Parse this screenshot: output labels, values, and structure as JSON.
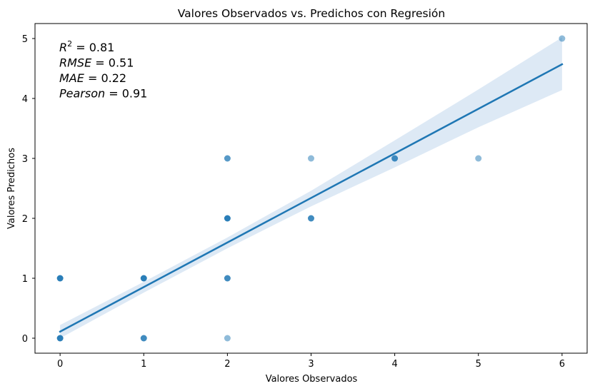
{
  "chart_data": {
    "type": "scatter",
    "title": "Valores Observados vs. Predichos con Regresión",
    "xlabel": "Valores Observados",
    "ylabel": "Valores Predichos",
    "xlim": [
      -0.3,
      6.3
    ],
    "ylim": [
      -0.25,
      5.25
    ],
    "xticks": [
      0,
      1,
      2,
      3,
      4,
      5,
      6
    ],
    "yticks": [
      0,
      1,
      2,
      3,
      4,
      5
    ],
    "grid": false,
    "point_color": "#1f77b4",
    "line_color": "#1f77b4",
    "band_color": "#c6dbef",
    "points": [
      {
        "x": 0,
        "y": 0,
        "alpha": 0.95
      },
      {
        "x": 0,
        "y": 1,
        "alpha": 0.95
      },
      {
        "x": 1,
        "y": 0,
        "alpha": 0.85
      },
      {
        "x": 1,
        "y": 1,
        "alpha": 0.95
      },
      {
        "x": 2,
        "y": 0,
        "alpha": 0.5
      },
      {
        "x": 2,
        "y": 1,
        "alpha": 0.85
      },
      {
        "x": 2,
        "y": 2,
        "alpha": 0.95
      },
      {
        "x": 2,
        "y": 3,
        "alpha": 0.75
      },
      {
        "x": 3,
        "y": 2,
        "alpha": 0.85
      },
      {
        "x": 3,
        "y": 3,
        "alpha": 0.5
      },
      {
        "x": 4,
        "y": 3,
        "alpha": 0.85
      },
      {
        "x": 5,
        "y": 3,
        "alpha": 0.5
      },
      {
        "x": 6,
        "y": 5,
        "alpha": 0.5
      }
    ],
    "regression": {
      "x": [
        0,
        6
      ],
      "y": [
        0.11,
        4.57
      ],
      "band": [
        {
          "x": 0,
          "lo": 0.0,
          "hi": 0.22
        },
        {
          "x": 1,
          "lo": 0.76,
          "hi": 0.94
        },
        {
          "x": 2,
          "lo": 1.5,
          "hi": 1.68
        },
        {
          "x": 3,
          "lo": 2.2,
          "hi": 2.46
        },
        {
          "x": 4,
          "lo": 2.85,
          "hi": 3.3
        },
        {
          "x": 5,
          "lo": 3.52,
          "hi": 4.15
        },
        {
          "x": 6,
          "lo": 4.14,
          "hi": 5.02
        }
      ]
    },
    "stats": [
      {
        "name": "R",
        "sup": "2",
        "rest": " = 0.81"
      },
      {
        "name": "RMSE",
        "sup": "",
        "rest": " = 0.51"
      },
      {
        "name": "MAE",
        "sup": "",
        "rest": " = 0.22"
      },
      {
        "name": "Pearson",
        "sup": "",
        "rest": " = 0.91"
      }
    ]
  }
}
